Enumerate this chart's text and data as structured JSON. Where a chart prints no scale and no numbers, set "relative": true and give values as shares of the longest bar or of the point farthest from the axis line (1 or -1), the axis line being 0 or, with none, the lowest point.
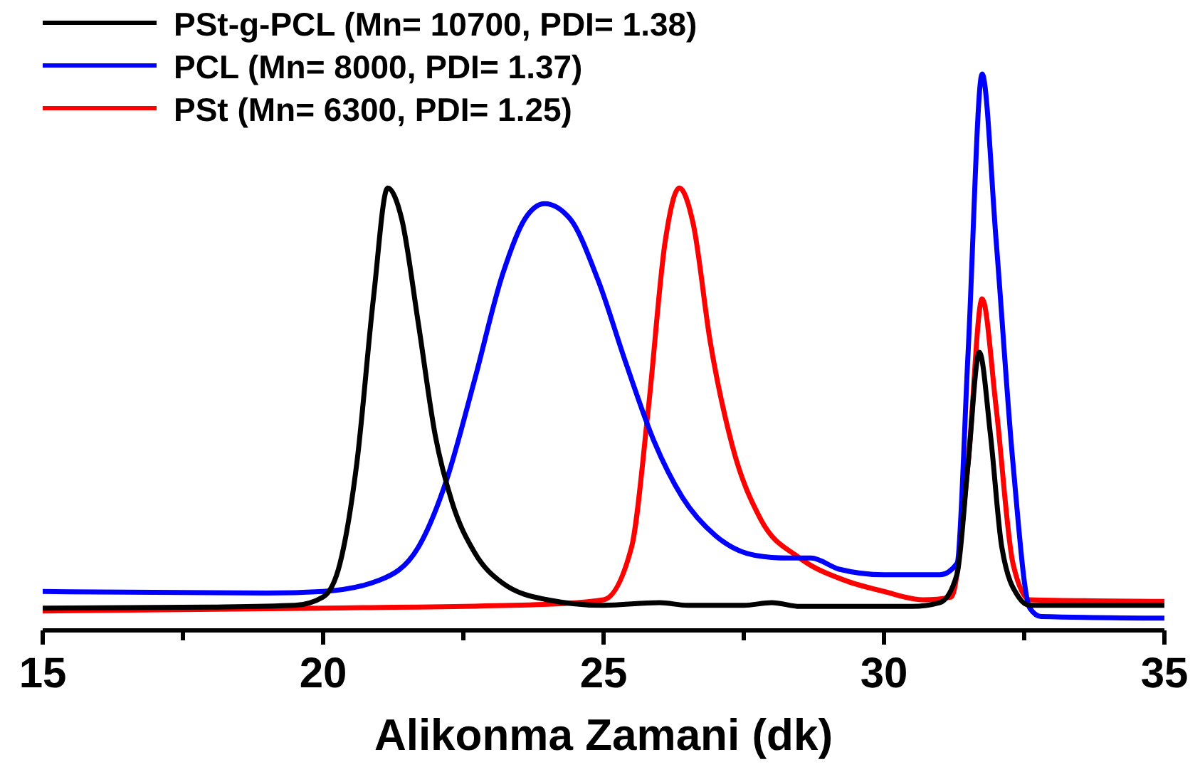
{
  "chart_data": {
    "type": "line",
    "relative": true,
    "xlabel": "Alikonma Zamani (dk)",
    "xlim": [
      15,
      35
    ],
    "xticks": [
      15,
      {
        "value": 17.5,
        "label": null
      },
      20,
      {
        "value": 22.5,
        "label": null
      },
      25,
      {
        "value": 27.5,
        "label": null
      },
      30,
      {
        "value": 32.5,
        "label": null
      },
      35
    ],
    "legend": "top left",
    "grid": false,
    "line_style": "solid",
    "series": [
      {
        "name": "PSt-g-PCL (Mn= 10700, PDI= 1.38)",
        "color": "#000000",
        "x": [
          15,
          18,
          19.5,
          20,
          20.3,
          20.6,
          20.9,
          21.15,
          21.4,
          21.7,
          22,
          22.3,
          22.7,
          23.2,
          24,
          25,
          26,
          26.5,
          27.5,
          28,
          28.5,
          30.5,
          31,
          31.3,
          31.5,
          31.7,
          31.9,
          32.1,
          32.4,
          32.6,
          35
        ],
        "values": [
          0.04,
          0.042,
          0.045,
          0.06,
          0.12,
          0.3,
          0.6,
          0.795,
          0.74,
          0.55,
          0.35,
          0.23,
          0.14,
          0.085,
          0.055,
          0.045,
          0.05,
          0.045,
          0.045,
          0.05,
          0.043,
          0.043,
          0.05,
          0.1,
          0.3,
          0.5,
          0.35,
          0.15,
          0.06,
          0.045,
          0.045
        ]
      },
      {
        "name": "PCL (Mn= 8000, PDI= 1.37)",
        "color": "#0000ff",
        "x": [
          15,
          19,
          20,
          21,
          21.7,
          22.2,
          22.7,
          23.2,
          23.6,
          23.95,
          24.4,
          24.9,
          25.4,
          25.9,
          26.4,
          27,
          27.7,
          28.3,
          28.7,
          29.2,
          30,
          31,
          31.3,
          31.5,
          31.75,
          32,
          32.3,
          32.6,
          32.8,
          35
        ],
        "values": [
          0.07,
          0.067,
          0.07,
          0.09,
          0.15,
          0.27,
          0.45,
          0.64,
          0.74,
          0.767,
          0.74,
          0.63,
          0.48,
          0.34,
          0.24,
          0.17,
          0.135,
          0.13,
          0.13,
          0.11,
          0.1,
          0.1,
          0.12,
          0.5,
          1,
          0.7,
          0.3,
          0.04,
          0.025,
          0.022
        ]
      },
      {
        "name": "PSt (Mn= 6300, PDI= 1.25)",
        "color": "#ff0000",
        "x": [
          15,
          20,
          24,
          25,
          25.5,
          25.8,
          26.1,
          26.35,
          26.6,
          26.9,
          27.3,
          27.8,
          28.5,
          29.3,
          30,
          30.7,
          31.2,
          31.5,
          31.75,
          32,
          32.3,
          32.6,
          35
        ],
        "values": [
          0.035,
          0.04,
          0.047,
          0.055,
          0.15,
          0.4,
          0.7,
          0.795,
          0.73,
          0.52,
          0.33,
          0.2,
          0.13,
          0.09,
          0.07,
          0.055,
          0.06,
          0.3,
          0.596,
          0.4,
          0.12,
          0.055,
          0.052
        ]
      }
    ]
  }
}
